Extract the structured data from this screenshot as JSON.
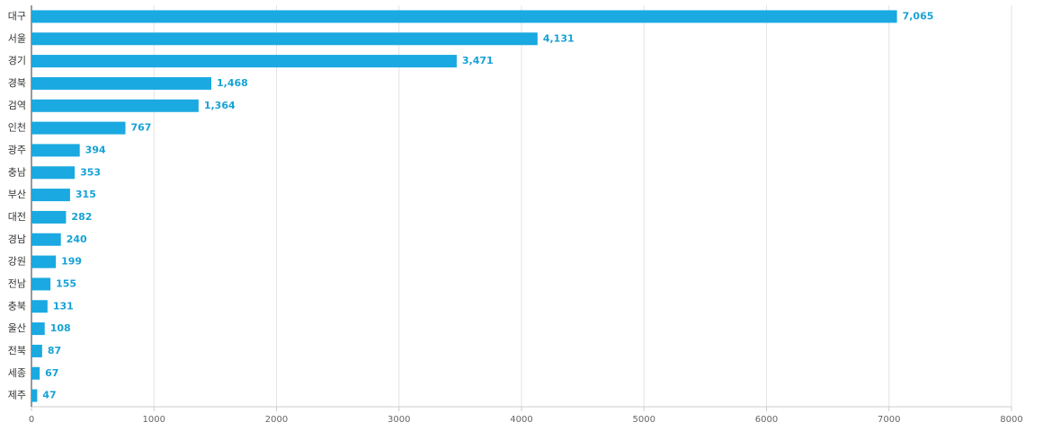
{
  "chart_data": {
    "type": "bar",
    "orientation": "horizontal",
    "categories": [
      "대구",
      "서울",
      "경기",
      "경북",
      "검역",
      "인천",
      "광주",
      "충남",
      "부산",
      "대전",
      "경남",
      "강원",
      "전남",
      "충북",
      "울산",
      "전북",
      "세종",
      "제주"
    ],
    "values": [
      7065,
      4131,
      3471,
      1468,
      1364,
      767,
      394,
      353,
      315,
      282,
      240,
      199,
      155,
      131,
      108,
      87,
      67,
      47
    ],
    "value_labels": [
      "7,065",
      "4,131",
      "3,471",
      "1,468",
      "1,364",
      "767",
      "394",
      "353",
      "315",
      "282",
      "240",
      "199",
      "155",
      "131",
      "108",
      "87",
      "67",
      "47"
    ],
    "color": "#1aa9e0",
    "xlim": [
      0,
      8000
    ],
    "xticks": [
      0,
      1000,
      2000,
      3000,
      4000,
      5000,
      6000,
      7000,
      8000
    ],
    "grid": true
  }
}
